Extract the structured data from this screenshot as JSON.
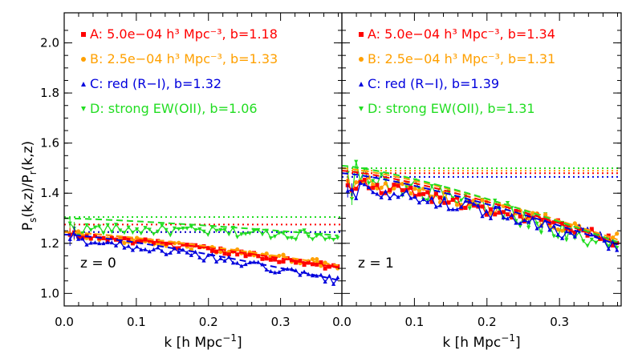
{
  "chart_data": {
    "type": "line",
    "ylabel": "P_s(k,z)/P_r(k,z)",
    "xlabel": "k [h Mpc^-1]",
    "ylim": [
      0.95,
      2.12
    ],
    "series_meta": [
      {
        "id": "A",
        "color": "#ff0000",
        "marker": "square",
        "bias": 1.18,
        "label": "A: 5.0e−04 h³ Mpc⁻³, b=1.18"
      },
      {
        "id": "B",
        "color": "#ffa000",
        "marker": "circle",
        "bias": 1.33,
        "label": "B: 2.5e−04 h³ Mpc⁻³, b=1.33"
      },
      {
        "id": "C",
        "color": "#0000dd",
        "marker": "triangle-up",
        "bias": 1.32,
        "label": "C: red (R−I), b=1.32"
      },
      {
        "id": "D",
        "color": "#22dd22",
        "marker": "triangle-down",
        "bias": 1.06,
        "label": "D: strong EW(OII), b=1.06"
      }
    ],
    "panels": [
      {
        "id": "z0",
        "redshift_label": "z = 0",
        "xlim": [
          0.0,
          0.385
        ],
        "xticks": [
          0.0,
          0.1,
          0.2,
          0.3
        ],
        "xtick_labels": [
          "0.0",
          "0.1",
          "0.2",
          "0.3"
        ],
        "yticks": [
          1.0,
          1.2,
          1.4,
          1.6,
          1.8,
          2.0
        ],
        "ytick_labels": [
          "1.0",
          "1.2",
          "1.4",
          "1.6",
          "1.8",
          "2.0"
        ],
        "legend": [
          {
            "label": "A: 5.0e−04 h³ Mpc⁻³, b=1.18",
            "color": "#ff0000"
          },
          {
            "label": "B: 2.5e−04 h³ Mpc⁻³, b=1.33",
            "color": "#ffa000"
          },
          {
            "label": "C: red (R−I), b=1.32",
            "color": "#0000dd"
          },
          {
            "label": "D: strong EW(OII), b=1.06",
            "color": "#22dd22"
          }
        ],
        "kaiser_levels": {
          "A": 1.275,
          "B": 1.245,
          "C": 1.245,
          "D": 1.305
        },
        "fit_lines": {
          "A": {
            "start": 1.245,
            "end": 1.1
          },
          "B": {
            "start": 1.245,
            "end": 1.11
          },
          "C": {
            "start": 1.235,
            "end": 1.05
          },
          "D": {
            "start": 1.3,
            "end": 1.23
          }
        },
        "series": {
          "A": {
            "start": 1.23,
            "end": 1.1,
            "noise": 0.012
          },
          "B": {
            "start": 1.23,
            "end": 1.11,
            "noise": 0.013
          },
          "C": {
            "start": 1.215,
            "end": 1.045,
            "noise": 0.016
          },
          "D": {
            "start": 1.26,
            "end": 1.23,
            "noise": 0.02
          }
        }
      },
      {
        "id": "z1",
        "redshift_label": "z = 1",
        "xlim": [
          0.0,
          0.385
        ],
        "xticks": [
          0.0,
          0.1,
          0.2,
          0.3
        ],
        "xtick_labels": [
          "0.0",
          "0.1",
          "0.2",
          "0.3"
        ],
        "legend": [
          {
            "label": "A: 5.0e−04 h³ Mpc⁻³, b=1.34",
            "color": "#ff0000"
          },
          {
            "label": "B: 2.5e−04 h³ Mpc⁻³, b=1.31",
            "color": "#ffa000"
          },
          {
            "label": "C: red (R−I), b=1.39",
            "color": "#0000dd"
          },
          {
            "label": "D: strong EW(OII), b=1.31",
            "color": "#22dd22"
          }
        ],
        "kaiser_levels": {
          "A": 1.48,
          "B": 1.49,
          "C": 1.465,
          "D": 1.5
        },
        "fit_lines": {
          "A": {
            "start": 1.49,
            "end": 1.2
          },
          "B": {
            "start": 1.5,
            "end": 1.21
          },
          "C": {
            "start": 1.48,
            "end": 1.19
          },
          "D": {
            "start": 1.51,
            "end": 1.2
          }
        },
        "series": {
          "A": {
            "start": 1.44,
            "end": 1.2,
            "noise": 0.025
          },
          "B": {
            "start": 1.45,
            "end": 1.21,
            "noise": 0.025
          },
          "C": {
            "start": 1.43,
            "end": 1.19,
            "noise": 0.035
          },
          "D": {
            "start": 1.47,
            "end": 1.18,
            "noise": 0.04
          }
        }
      }
    ]
  }
}
